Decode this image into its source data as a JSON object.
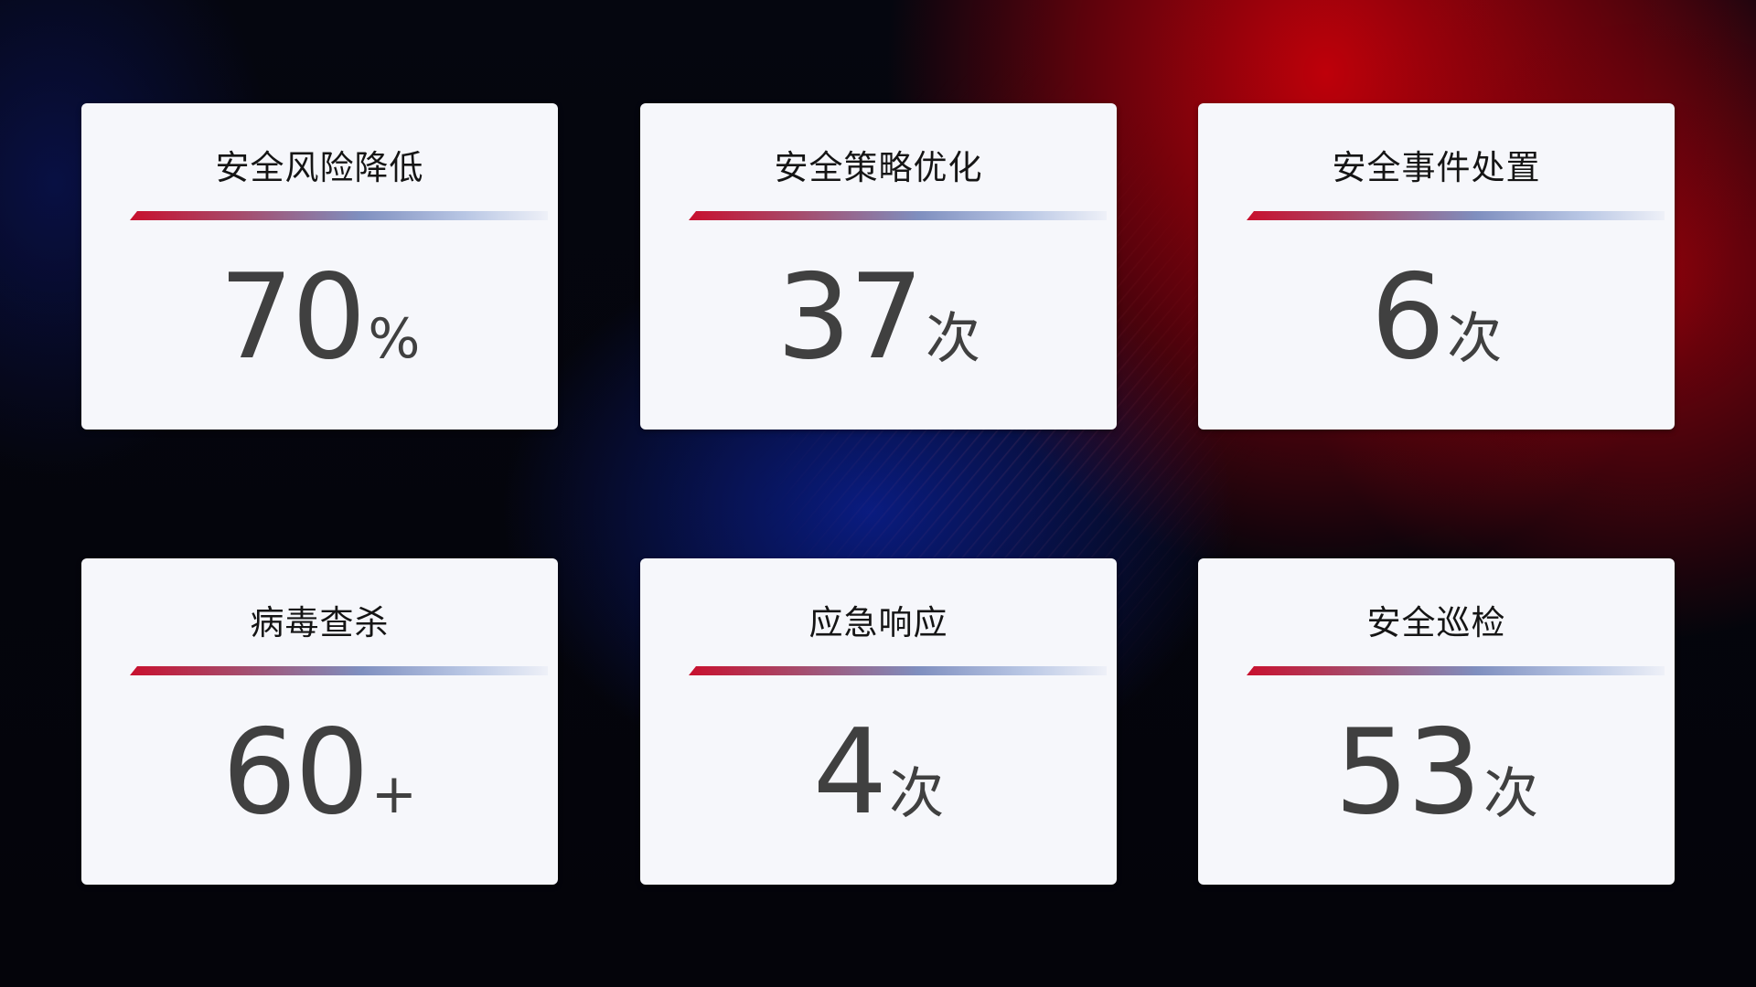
{
  "cards": [
    {
      "title": "安全风险降低",
      "value": "70",
      "unit": "%"
    },
    {
      "title": "安全策略优化",
      "value": "37",
      "unit": "次"
    },
    {
      "title": "安全事件处置",
      "value": "6",
      "unit": "次"
    },
    {
      "title": "病毒查杀",
      "value": "60",
      "unit": "+"
    },
    {
      "title": "应急响应",
      "value": "4",
      "unit": "次"
    },
    {
      "title": "安全巡检",
      "value": "53",
      "unit": "次"
    }
  ],
  "colors": {
    "accent_red": "#c8102e",
    "accent_blue": "#7f8fbf",
    "card_bg": "#f6f7fb",
    "value_text": "#404040"
  }
}
